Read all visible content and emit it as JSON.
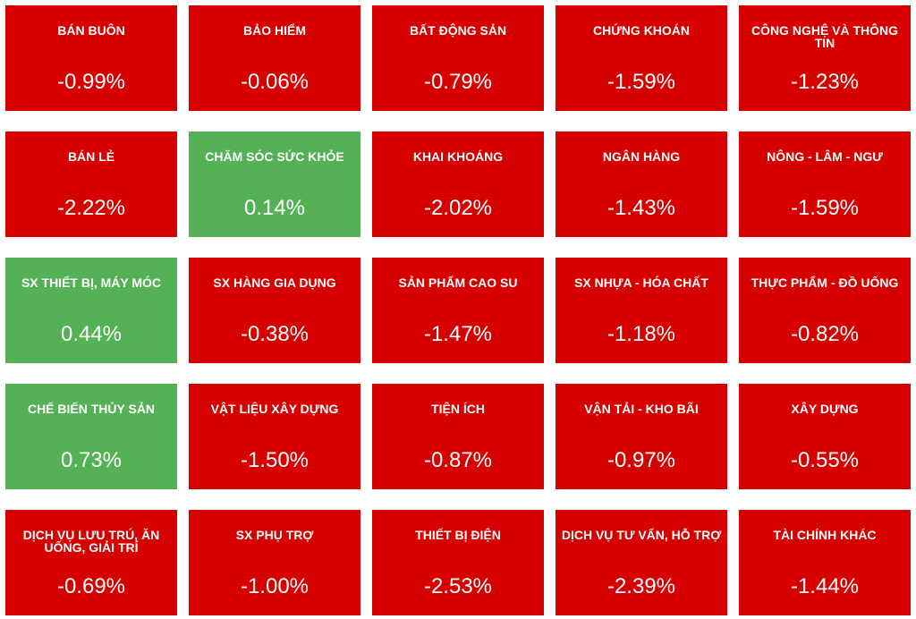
{
  "tiles": [
    {
      "label": "BÁN BUÔN",
      "value": "-0.99%",
      "color": "#d60000"
    },
    {
      "label": "BẢO HIỂM",
      "value": "-0.06%",
      "color": "#d60000"
    },
    {
      "label": "BẤT ĐỘNG SẢN",
      "value": "-0.79%",
      "color": "#d60000"
    },
    {
      "label": "CHỨNG KHOÁN",
      "value": "-1.59%",
      "color": "#d60000"
    },
    {
      "label": "CÔNG NGHỆ VÀ THÔNG TIN",
      "value": "-1.23%",
      "color": "#d60000"
    },
    {
      "label": "BÁN LẺ",
      "value": "-2.22%",
      "color": "#d60000"
    },
    {
      "label": "CHĂM SÓC SỨC KHỎE",
      "value": "0.14%",
      "color": "#55b155"
    },
    {
      "label": "KHAI KHOÁNG",
      "value": "-2.02%",
      "color": "#d60000"
    },
    {
      "label": "NGÂN HÀNG",
      "value": "-1.43%",
      "color": "#d60000"
    },
    {
      "label": "NÔNG - LÂM - NGƯ",
      "value": "-1.59%",
      "color": "#d60000"
    },
    {
      "label": "SX THIẾT BỊ, MÁY MÓC",
      "value": "0.44%",
      "color": "#55b155"
    },
    {
      "label": "SX HÀNG GIA DỤNG",
      "value": "-0.38%",
      "color": "#d60000"
    },
    {
      "label": "SẢN PHẨM CAO SU",
      "value": "-1.47%",
      "color": "#d60000"
    },
    {
      "label": "SX NHỰA - HÓA CHẤT",
      "value": "-1.18%",
      "color": "#d60000"
    },
    {
      "label": "THỰC PHẨM - ĐỒ UỐNG",
      "value": "-0.82%",
      "color": "#d60000"
    },
    {
      "label": "CHẾ BIẾN THỦY SẢN",
      "value": "0.73%",
      "color": "#55b155"
    },
    {
      "label": "VẬT LIỆU XÂY DỰNG",
      "value": "-1.50%",
      "color": "#d60000"
    },
    {
      "label": "TIỆN ÍCH",
      "value": "-0.87%",
      "color": "#d60000"
    },
    {
      "label": "VẬN TẢI - KHO BÃI",
      "value": "-0.97%",
      "color": "#d60000"
    },
    {
      "label": "XÂY DỰNG",
      "value": "-0.55%",
      "color": "#d60000"
    },
    {
      "label": "DỊCH VỤ LƯU TRÚ, ĂN UỐNG, GIẢI TRÍ",
      "value": "-0.69%",
      "color": "#d60000"
    },
    {
      "label": "SX PHỤ TRỢ",
      "value": "-1.00%",
      "color": "#d60000"
    },
    {
      "label": "THIẾT BỊ ĐIỆN",
      "value": "-2.53%",
      "color": "#d60000"
    },
    {
      "label": "DỊCH VỤ TƯ VẤN, HỖ TRỢ",
      "value": "-2.39%",
      "color": "#d60000"
    },
    {
      "label": "TÀI CHÍNH KHÁC",
      "value": "-1.44%",
      "color": "#d60000"
    }
  ]
}
